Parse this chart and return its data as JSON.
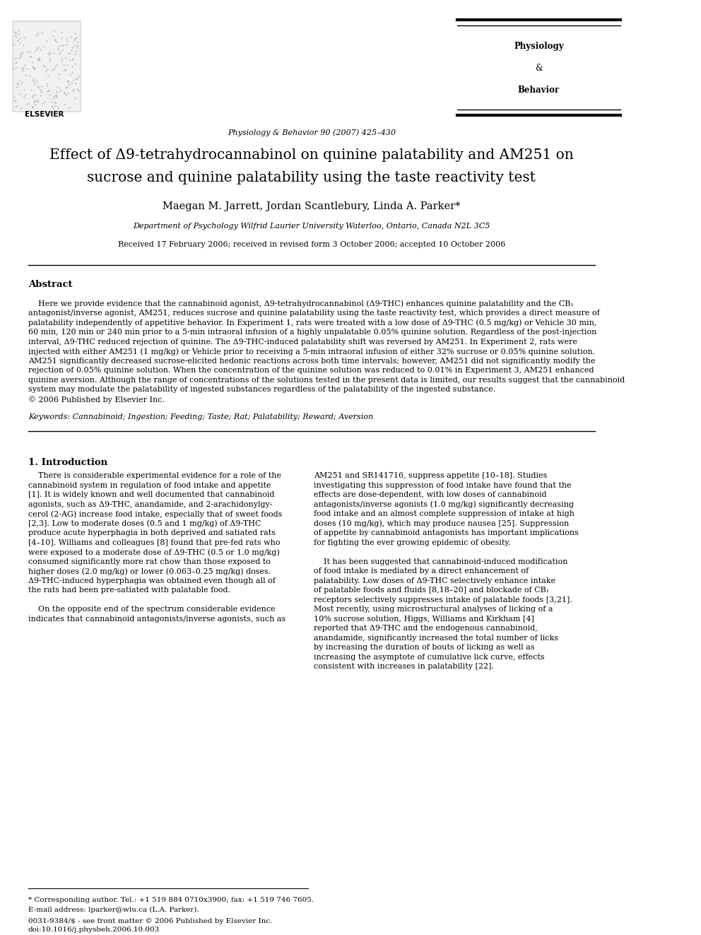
{
  "page_bg": "#ffffff",
  "title_line1": "Effect of Δ9-tetrahydrocannabinol on quinine palatability and AM251 on",
  "title_line2": "sucrose and quinine palatability using the taste reactivity test",
  "authors": "Maegan M. Jarrett, Jordan Scantlebury, Linda A. Parker*",
  "affiliation": "Department of Psychology Wilfrid Laurier University Waterloo, Ontario, Canada N2L 3C5",
  "received": "Received 17 February 2006; received in revised form 3 October 2006; accepted 10 October 2006",
  "journal_header": "Physiology & Behavior 90 (2007) 425–430",
  "journal_name_line1": "Physiology",
  "journal_name_line2": "&",
  "journal_name_line3": "Behavior",
  "elsevier_text": "ELSEVIER",
  "abstract_title": "Abstract",
  "abstract_body": "Here we provide evidence that the cannabinoid agonist, Δ9-tetrahydrocannabinol (Δ9-THC) enhances quinine palatability and the CB1 antagonist/inverse agonist, AM251, reduces sucrose and quinine palatability using the taste reactivity test, which provides a direct measure of palatability independently of appetitive behavior. In Experiment 1, rats were treated with a low dose of Δ9-THC (0.5 mg/kg) or Vehicle 30 min, 60 min, 120 min or 240 min prior to a 5-min intraoral infusion of a highly unpalatable 0.05% quinine solution. Regardless of the post-injection interval, Δ9-THC reduced rejection of quinine. The Δ9-THC-induced palatability shift was reversed by AM251. In Experiment 2, rats were injected with either AM251 (1 mg/kg) or Vehicle prior to receiving a 5-min intraoral infusion of either 32% sucrose or 0.05% quinine solution. AM251 significantly decreased sucrose-elicited hedonic reactions across both time intervals; however, AM251 did not significantly modify the rejection of 0.05% quinine solution. When the concentration of the quinine solution was reduced to 0.01% in Experiment 3, AM251 enhanced quinine aversion. Although the range of concentrations of the solutions tested in the present data is limited, our results suggest that the cannabinoid system may modulate the palatability of ingested substances regardless of the palatability of the ingested substance.\n© 2006 Published by Elsevier Inc.",
  "keywords": "Keywords: Cannabinoid; Ingestion; Feeding; Taste; Rat; Palatability; Reward; Aversion",
  "intro_title": "1. Introduction",
  "intro_col1": "There is considerable experimental evidence for a role of the cannabinoid system in regulation of food intake and appetite [1]. It is widely known and well documented that cannabinoid agonists, such as Δ9-THC, anandamide, and 2-arachidonylglycerol (2-AG) increase food intake, especially that of sweet foods [2,3]. Low to moderate doses (0.5 and 1 mg/kg) of Δ9-THC produce acute hyperphagia in both deprived and satiated rats [4–10]. Williams and colleagues [8] found that pre-fed rats who were exposed to a moderate dose of Δ9-THC (0.5 or 1.0 mg/kg) consumed significantly more rat chow than those exposed to higher doses (2.0 mg/kg) or lower (0.063–0.25 mg/kg) doses. Δ9-THC-induced hyperphagia was obtained even though all of the rats had been pre-satiated with palatable food.\n\n    On the opposite end of the spectrum considerable evidence indicates that cannabinoid antagonists/inverse agonists, such as",
  "intro_col2": "AM251 and SR141716, suppress appetite [10–18]. Studies investigating this suppression of food intake have found that the effects are dose-dependent, with low doses of cannabinoid antagonists/inverse agonists (1.0 mg/kg) significantly decreasing food intake and an almost complete suppression of intake at high doses (10 mg/kg), which may produce nausea [25]. Suppression of appetite by cannabinoid antagonists has important implications for fighting the ever growing epidemic of obesity.\n\n    It has been suggested that cannabinoid-induced modification of food intake is mediated by a direct enhancement of palatability. Low doses of Δ9-THC selectively enhance intake of palatable foods and fluids [8,18–20] and blockade of CB1 receptors selectively suppresses intake of palatable foods [3,21]. Most recently, using microstructural analyses of licking of a 10% sucrose solution, Higgs, Williams and Kirkham [4] reported that Δ9-THC and the endogenous cannabinoid, anandamide, significantly increased the total number of licks by increasing the duration of bouts of licking as well as increasing the asymptote of cumulative lick curve, effects consistent with increases in palatability [22].",
  "footnote_line1": "* Corresponding author. Tel.: +1 519 884 0710x3900; fax: +1 519 746 7605.",
  "footnote_line2": "E-mail address: lparker@wlu.ca (L.A. Parker).",
  "footnote_issn": "0031-9384/$ - see front matter © 2006 Published by Elsevier Inc.",
  "footnote_doi": "doi:10.1016/j.physbeh.2006.10.003"
}
